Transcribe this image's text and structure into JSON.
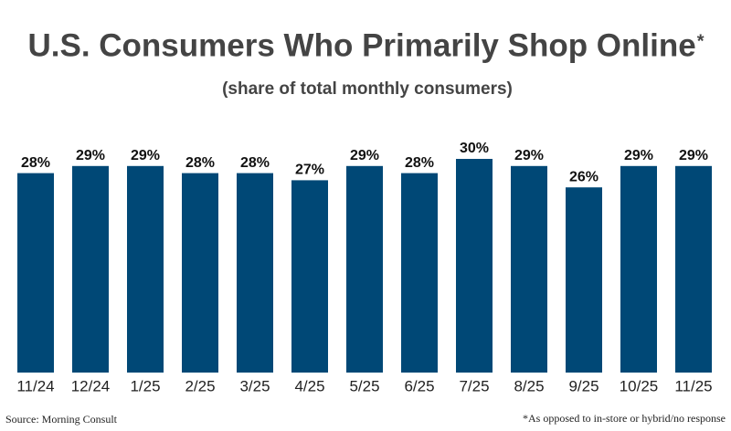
{
  "chart_data": {
    "type": "bar",
    "title": "U.S. Consumers Who Primarily Shop Online",
    "title_mark": "*",
    "subtitle": "(share of total monthly consumers)",
    "categories": [
      "11/24",
      "12/24",
      "1/25",
      "2/25",
      "3/25",
      "4/25",
      "5/25",
      "6/25",
      "7/25",
      "8/25",
      "9/25",
      "10/25",
      "11/25"
    ],
    "values": [
      28,
      29,
      29,
      28,
      28,
      27,
      29,
      28,
      30,
      29,
      26,
      29,
      29
    ],
    "value_labels": [
      "28%",
      "29%",
      "29%",
      "28%",
      "28%",
      "27%",
      "29%",
      "28%",
      "30%",
      "29%",
      "26%",
      "29%",
      "29%"
    ],
    "color": "#004876",
    "source": "Source: Morning Consult",
    "note": "*As opposed to in-store or hybrid/no response"
  }
}
